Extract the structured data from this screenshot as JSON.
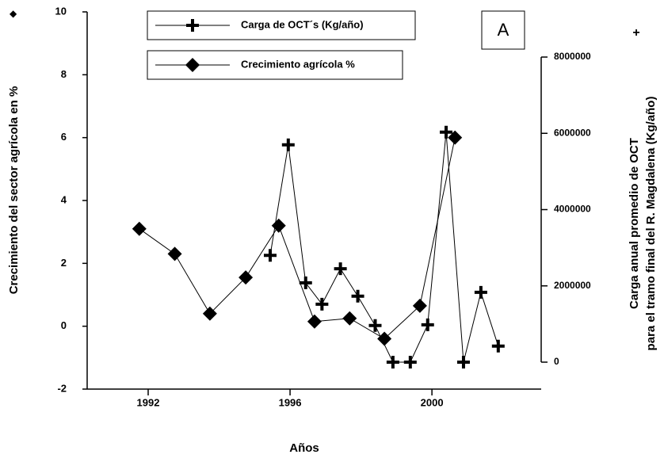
{
  "chart_data": {
    "type": "line",
    "panel_label": "A",
    "x_label": "Años",
    "y_label": "Crecimiento del sector agrícola en  %",
    "y2_label": [
      "Carga anual promedio  de OCT",
      "para el tramo final del R. Magdalena (Kg/año)"
    ],
    "xlim": [
      1990.28,
      2003.08
    ],
    "xticks": [
      1992,
      1996,
      2000
    ],
    "ylim": [
      -2,
      10
    ],
    "yticks": [
      -2,
      0,
      2,
      4,
      6,
      8,
      10
    ],
    "y2lim": [
      0,
      8000000
    ],
    "y2ticks": [
      0,
      2000000,
      4000000,
      6000000,
      8000000
    ],
    "series": [
      {
        "name": "Carga de OCT´s (Kg/año)",
        "color": "#000000",
        "marker": "plus",
        "axis": "y2",
        "x": [
          1995.44,
          1995.95,
          1996.44,
          1996.9,
          1997.42,
          1997.91,
          1998.4,
          1998.9,
          1999.39,
          1999.88,
          2000.4,
          2000.89,
          2001.38,
          2001.87
        ],
        "values": [
          2800000,
          5700000,
          2080000,
          1520000,
          2450000,
          1730000,
          960000,
          0,
          0,
          980000,
          6030000,
          0,
          1830000,
          420000
        ]
      },
      {
        "name": "Crecimiento agrícola  %",
        "color": "#000000",
        "marker": "diamond",
        "x": [
          1991.75,
          1992.75,
          1993.74,
          1994.75,
          1995.68,
          1996.69,
          1997.68,
          1998.66,
          1999.66,
          2000.65
        ],
        "values": [
          3.1,
          2.3,
          0.4,
          1.55,
          3.2,
          0.15,
          0.25,
          -0.4,
          0.65,
          6.0
        ]
      }
    ]
  }
}
